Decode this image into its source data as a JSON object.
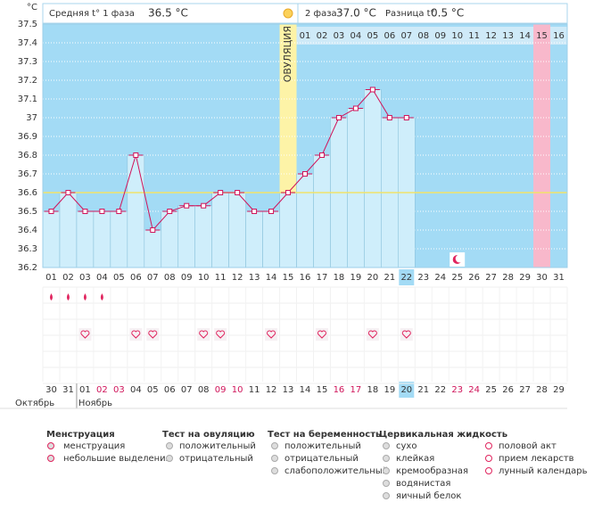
{
  "header": {
    "phase1_label": "Средняя t° 1 фаза",
    "phase1_value": "36.5 °C",
    "phase2_label": "2 фаза",
    "phase2_value": "37.0 °C",
    "diff_label": "Разница t°",
    "diff_value": "0.5 °C"
  },
  "chart_data": {
    "type": "line",
    "y_label": "°C",
    "ovulation_label": "ОВУЛЯЦИЯ",
    "categories": [
      "01",
      "02",
      "03",
      "04",
      "05",
      "06",
      "07",
      "08",
      "09",
      "10",
      "11",
      "12",
      "13",
      "14",
      "15",
      "16",
      "17",
      "18",
      "19",
      "20",
      "21",
      "22",
      "23",
      "24",
      "25",
      "26",
      "27",
      "28",
      "29",
      "30",
      "31"
    ],
    "values": [
      36.5,
      36.6,
      36.5,
      36.5,
      36.5,
      36.8,
      36.4,
      36.5,
      36.53,
      36.53,
      36.6,
      36.6,
      36.5,
      36.5,
      36.6,
      36.7,
      36.8,
      37.0,
      37.05,
      37.15,
      37.0,
      37.0,
      null,
      null,
      null,
      null,
      null,
      null,
      null,
      null,
      null
    ],
    "color": "#d0145a",
    "bar_color": "#cfeefb",
    "ylim": [
      36.2,
      37.5
    ],
    "yticks": [
      36.2,
      36.3,
      36.4,
      36.5,
      36.6,
      36.7,
      36.8,
      36.9,
      37,
      37.1,
      37.2,
      37.3,
      37.4,
      37.5
    ],
    "coverline": 36.6,
    "ovulation_day": 15,
    "today": 22,
    "expected_period_day": 30,
    "moon_day": 25,
    "days_after_ovulation": [
      "01",
      "02",
      "03",
      "04",
      "05",
      "06",
      "07",
      "08",
      "09",
      "10",
      "11",
      "12",
      "13",
      "14",
      "15",
      "16"
    ],
    "menstruation_days": [
      1,
      2,
      3,
      4
    ],
    "intercourse_days": [
      3,
      6,
      7,
      10,
      11,
      14,
      17,
      20,
      22
    ],
    "dates": [
      "30",
      "31",
      "01",
      "02",
      "03",
      "04",
      "05",
      "06",
      "07",
      "08",
      "09",
      "10",
      "11",
      "12",
      "13",
      "14",
      "15",
      "16",
      "17",
      "18",
      "19",
      "20",
      "21",
      "22",
      "23",
      "24",
      "25",
      "26",
      "27",
      "28",
      "29"
    ],
    "weekend_dates": [
      "02",
      "03",
      "09",
      "10",
      "16",
      "17",
      "23",
      "24"
    ],
    "months": [
      "Октябрь",
      "Ноябрь"
    ]
  },
  "legend": {
    "groups": [
      {
        "title": "Менструация",
        "items": [
          "менструация",
          "небольшие выделения"
        ]
      },
      {
        "title": "Тест на овуляцию",
        "items": [
          "положительный",
          "отрицательный"
        ]
      },
      {
        "title": "Тест на беременность",
        "items": [
          "положительный",
          "отрицательный",
          "слабоположительный"
        ]
      },
      {
        "title": "Цервикальная жидкость",
        "items": [
          "сухо",
          "клейкая",
          "кремообразная",
          "водянистая",
          "яичный белок"
        ]
      },
      {
        "title": null,
        "items": [
          "половой акт",
          "прием лекарств",
          "лунный календарь"
        ]
      }
    ]
  }
}
